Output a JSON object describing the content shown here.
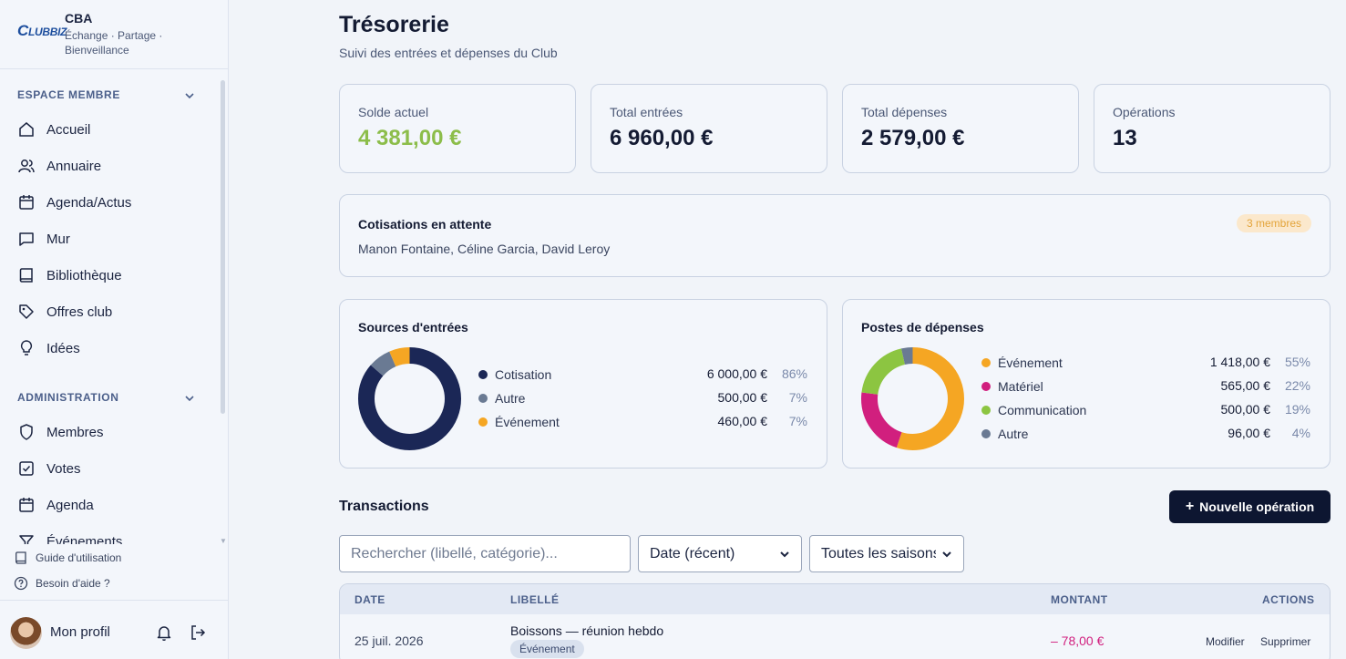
{
  "brand": {
    "logo_text": "CLUBBIZ",
    "name": "CBA",
    "tagline": "Échange · Partage · Bienveillance"
  },
  "sidebar": {
    "sections": [
      {
        "title": "ESPACE MEMBRE",
        "items": [
          {
            "label": "Accueil",
            "icon": "home-icon"
          },
          {
            "label": "Annuaire",
            "icon": "users-icon"
          },
          {
            "label": "Agenda/Actus",
            "icon": "calendar-icon"
          },
          {
            "label": "Mur",
            "icon": "message-icon"
          },
          {
            "label": "Bibliothèque",
            "icon": "book-icon"
          },
          {
            "label": "Offres club",
            "icon": "tag-icon"
          },
          {
            "label": "Idées",
            "icon": "lightbulb-icon"
          }
        ]
      },
      {
        "title": "ADMINISTRATION",
        "items": [
          {
            "label": "Membres",
            "icon": "shield-icon"
          },
          {
            "label": "Votes",
            "icon": "checkbox-icon"
          },
          {
            "label": "Agenda",
            "icon": "calendar-icon"
          },
          {
            "label": "Événements",
            "icon": "filter-icon"
          }
        ]
      }
    ],
    "help": [
      {
        "label": "Guide d'utilisation",
        "icon": "book-icon"
      },
      {
        "label": "Besoin d'aide ?",
        "icon": "help-circle-icon"
      }
    ],
    "profile": {
      "label": "Mon profil"
    }
  },
  "page": {
    "title": "Trésorerie",
    "subtitle": "Suivi des entrées et dépenses du Club"
  },
  "stats": [
    {
      "label": "Solde actuel",
      "value": "4 381,00 €",
      "accent": "#8cbd4a"
    },
    {
      "label": "Total entrées",
      "value": "6 960,00 €"
    },
    {
      "label": "Total dépenses",
      "value": "2 579,00 €"
    },
    {
      "label": "Opérations",
      "value": "13"
    }
  ],
  "pending": {
    "title": "Cotisations en attente",
    "names": "Manon Fontaine, Céline Garcia, David Leroy",
    "badge": "3 membres"
  },
  "chart_data": [
    {
      "type": "pie",
      "title": "Sources d'entrées",
      "categories": [
        "Cotisation",
        "Autre",
        "Événement"
      ],
      "values": [
        6000,
        500,
        460
      ],
      "amounts": [
        "6 000,00 €",
        "500,00 €",
        "460,00 €"
      ],
      "percents": [
        "86%",
        "7%",
        "7%"
      ],
      "colors": [
        "#1b2756",
        "#6a7a93",
        "#f5a623"
      ]
    },
    {
      "type": "pie",
      "title": "Postes de dépenses",
      "categories": [
        "Événement",
        "Matériel",
        "Communication",
        "Autre"
      ],
      "values": [
        1418,
        565,
        500,
        96
      ],
      "amounts": [
        "1 418,00 €",
        "565,00 €",
        "500,00 €",
        "96,00 €"
      ],
      "percents": [
        "55%",
        "22%",
        "19%",
        "4%"
      ],
      "colors": [
        "#f5a623",
        "#d11f7e",
        "#8cc541",
        "#6a7a93"
      ]
    }
  ],
  "transactions": {
    "title": "Transactions",
    "new_button": "Nouvelle opération",
    "search_placeholder": "Rechercher (libellé, catégorie)...",
    "sort_value": "Date (récent)",
    "season_value": "Toutes les saisons",
    "columns": [
      "DATE",
      "LIBELLÉ",
      "MONTANT",
      "ACTIONS"
    ],
    "rows": [
      {
        "date": "25 juil. 2026",
        "label": "Boissons — réunion hebdo",
        "category": "Événement",
        "amount": "– 78,00 €",
        "edit": "Modifier",
        "delete": "Supprimer"
      }
    ]
  }
}
